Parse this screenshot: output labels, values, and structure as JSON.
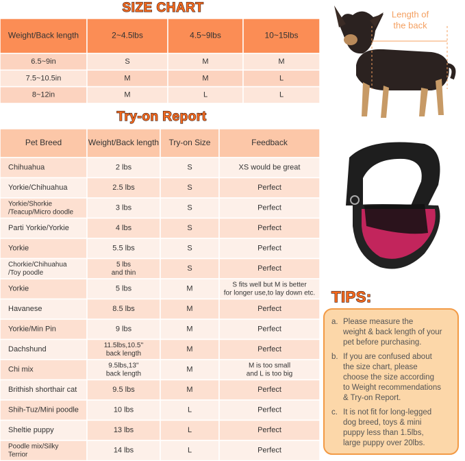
{
  "size_chart": {
    "title": "SIZE CHART",
    "header": [
      "Weight/Back length",
      "2~4.5lbs",
      "4.5~9lbs",
      "10~15lbs"
    ],
    "rows": [
      [
        "6.5~9in",
        "S",
        "M",
        "M"
      ],
      [
        "7.5~10.5in",
        "M",
        "M",
        "L"
      ],
      [
        "8~12in",
        "M",
        "L",
        "L"
      ]
    ]
  },
  "try_on_report": {
    "title": "Try-on Report",
    "header": [
      "Pet Breed",
      "Weight/Back length",
      "Try-on Size",
      "Feedback"
    ],
    "rows": [
      [
        "Chihuahua",
        "2 lbs",
        "S",
        "XS would be great"
      ],
      [
        "Yorkie/Chihuahua",
        "2.5 lbs",
        "S",
        "Perfect"
      ],
      [
        [
          "Yorkie/Shorkie",
          "/Teacup/Micro doodle"
        ],
        "3 lbs",
        "S",
        "Perfect"
      ],
      [
        "Parti Yorkie/Yorkie",
        "4 lbs",
        "S",
        "Perfect"
      ],
      [
        "Yorkie",
        "5.5 lbs",
        "S",
        "Perfect"
      ],
      [
        [
          "Chorkie/Chihuahua",
          "/Toy poodle"
        ],
        [
          "5 lbs",
          "and thin"
        ],
        "S",
        "Perfect"
      ],
      [
        "Yorkie",
        "5 lbs",
        "M",
        [
          "S fits well but M is better",
          "for longer use,to lay down etc."
        ]
      ],
      [
        "Havanese",
        "8.5 lbs",
        "M",
        "Perfect"
      ],
      [
        "Yorkie/Min Pin",
        "9 lbs",
        "M",
        "Perfect"
      ],
      [
        "Dachshund",
        [
          "11.5lbs,10.5''",
          "back length"
        ],
        "M",
        "Perfect"
      ],
      [
        "Chi mix",
        [
          "9.5lbs,13''",
          "back length"
        ],
        "M",
        [
          "M is too small",
          "and L is too big"
        ]
      ],
      [
        "Brithish shorthair cat",
        "9.5 lbs",
        "M",
        "Perfect"
      ],
      [
        "Shih-Tuz/Mini poodle",
        "10 lbs",
        "L",
        "Perfect"
      ],
      [
        "Sheltie puppy",
        "13 lbs",
        "L",
        "Perfect"
      ],
      [
        [
          "Poodle mix/Silky",
          "Terrior"
        ],
        "14 lbs",
        "L",
        "Perfect"
      ]
    ]
  },
  "dog_image": {
    "annotation": [
      "Length of",
      "the back"
    ]
  },
  "tips": {
    "title": "TIPS:",
    "items": [
      {
        "marker": "a.",
        "lines": [
          "Please measure the",
          "weight & back length of your",
          "pet before purchasing."
        ]
      },
      {
        "marker": "b.",
        "lines": [
          "If you are confused about",
          "the size chart, please",
          "choose the size according",
          "to Weight recommendations",
          "& Try-on Report."
        ]
      },
      {
        "marker": "c.",
        "lines": [
          "It is not fit for long-legged",
          "dog breed, toys & mini",
          "puppy less than 1.5lbs,",
          "large puppy over 20lbs."
        ]
      }
    ]
  }
}
